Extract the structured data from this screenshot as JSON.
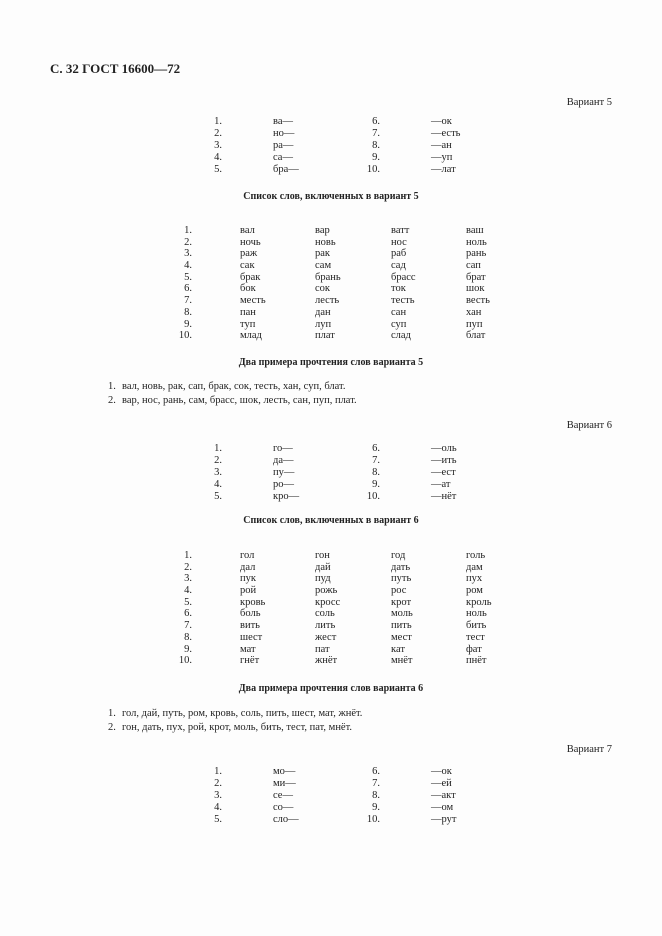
{
  "header": "С. 32 ГОСТ 16600—72",
  "sections": [
    {
      "variant": "Вариант 5",
      "syllables": [
        [
          "1.",
          "ва—",
          "6.",
          "—ок"
        ],
        [
          "2.",
          "но—",
          "7.",
          "—есть"
        ],
        [
          "3.",
          "ра—",
          "8.",
          "—ан"
        ],
        [
          "4.",
          "са—",
          "9.",
          "—уп"
        ],
        [
          "5.",
          "бра—",
          "10.",
          "—лат"
        ]
      ],
      "list_heading": "Список слов, включенных в вариант 5",
      "words": [
        [
          "1.",
          "вал",
          "вар",
          "ватт",
          "ваш"
        ],
        [
          "2.",
          "ночь",
          "новь",
          "нос",
          "ноль"
        ],
        [
          "3.",
          "раж",
          "рак",
          "раб",
          "рань"
        ],
        [
          "4.",
          "сак",
          "сам",
          "сад",
          "сап"
        ],
        [
          "5.",
          "брак",
          "брань",
          "брасс",
          "брат"
        ],
        [
          "6.",
          "бок",
          "сок",
          "ток",
          "шок"
        ],
        [
          "7.",
          "месть",
          "лесть",
          "тесть",
          "весть"
        ],
        [
          "8.",
          "пан",
          "дан",
          "сан",
          "хан"
        ],
        [
          "9.",
          "туп",
          "луп",
          "суп",
          "пуп"
        ],
        [
          "10.",
          "млад",
          "плат",
          "слад",
          "блат"
        ]
      ],
      "examples_heading": "Два примера прочтения слов варианта 5",
      "examples": [
        [
          "1.",
          "вал, новь, рак, сап, брак, сок, тесть, хан, суп, блат."
        ],
        [
          "2.",
          "вар, нос, рань, сам, брасс, шок, лесть, сан, пуп, плат."
        ]
      ]
    },
    {
      "variant": "Вариант 6",
      "syllables": [
        [
          "1.",
          "го—",
          "6.",
          "—оль"
        ],
        [
          "2.",
          "да—",
          "7.",
          "—ить"
        ],
        [
          "3.",
          "пу—",
          "8.",
          "—ест"
        ],
        [
          "4.",
          "ро—",
          "9.",
          "—ат"
        ],
        [
          "5.",
          "кро—",
          "10.",
          "—нёт"
        ]
      ],
      "list_heading": "Список слов, включенных в вариант 6",
      "words": [
        [
          "1.",
          "гол",
          "гон",
          "год",
          "голь"
        ],
        [
          "2.",
          "дал",
          "дай",
          "дать",
          "дам"
        ],
        [
          "3.",
          "пук",
          "пуд",
          "путь",
          "пух"
        ],
        [
          "4.",
          "рой",
          "рожь",
          "рос",
          "ром"
        ],
        [
          "5.",
          "кровь",
          "кросс",
          "крот",
          "кроль"
        ],
        [
          "6.",
          "боль",
          "соль",
          "моль",
          "ноль"
        ],
        [
          "7.",
          "вить",
          "лить",
          "пить",
          "бить"
        ],
        [
          "8.",
          "шест",
          "жест",
          "мест",
          "тест"
        ],
        [
          "9.",
          "мат",
          "пат",
          "кат",
          "фат"
        ],
        [
          "10.",
          "гнёт",
          "жнёт",
          "мнёт",
          "пнёт"
        ]
      ],
      "examples_heading": "Два примера прочтения слов варианта 6",
      "examples": [
        [
          "1.",
          "гол, дай, путь, ром, кровь, соль, пить, шест, мат, жнёт."
        ],
        [
          "2.",
          "гон, дать, пух, рой, крот, моль, бить, тест, пат, мнёт."
        ]
      ]
    },
    {
      "variant": "Вариант 7",
      "syllables": [
        [
          "1.",
          "мо—",
          "6.",
          "—ок"
        ],
        [
          "2.",
          "ми—",
          "7.",
          "—ей"
        ],
        [
          "3.",
          "се—",
          "8.",
          "—акт"
        ],
        [
          "4.",
          "со—",
          "9.",
          "—ом"
        ],
        [
          "5.",
          "сло—",
          "10.",
          "—рут"
        ]
      ]
    }
  ]
}
